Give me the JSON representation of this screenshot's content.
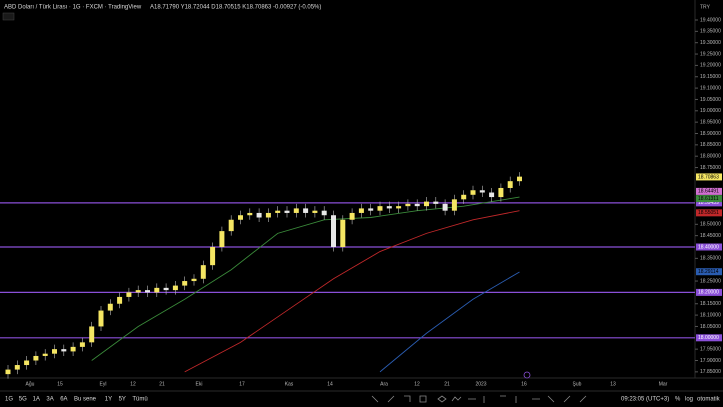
{
  "ui": {
    "header": "ABD Doları / Türk Lirası · 1G · FXCM · TradingView",
    "ohlc": "A18.71790 Y18.72044 D18.70515 K18.70863 -0.00927 (-0.05%)",
    "currency": "TRY",
    "ranges": [
      "1G",
      "5G",
      "1A",
      "3A",
      "6A",
      "Bu sene",
      "1Y",
      "5Y",
      "Tümü"
    ],
    "clock": "09:23:05 (UTC+3)",
    "percent": "%",
    "log": "log",
    "auto": "otomatik"
  },
  "chart_data": {
    "type": "candlestick",
    "up_color": "#f5e663",
    "down_color": "#e8e8e8",
    "time_labels": [
      "Ağu",
      "15",
      "Eyl",
      "12",
      "21",
      "Eki",
      "17",
      "Kas",
      "14",
      "Ara",
      "12",
      "21",
      "2023",
      "16",
      "Şub",
      "13",
      "Mar"
    ],
    "open": [
      17.84,
      17.86,
      17.88,
      17.9,
      17.92,
      17.93,
      17.95,
      17.94,
      17.96,
      17.98,
      18.05,
      18.12,
      18.15,
      18.18,
      18.2,
      18.21,
      18.2,
      18.22,
      18.21,
      18.23,
      18.25,
      18.26,
      18.32,
      18.4,
      18.47,
      18.52,
      18.54,
      18.55,
      18.53,
      18.55,
      18.56,
      18.55,
      18.57,
      18.55,
      18.56,
      18.54,
      18.4,
      18.52,
      18.55,
      18.57,
      18.56,
      18.58,
      18.57,
      18.58,
      18.59,
      18.58,
      18.6,
      18.59,
      18.56,
      18.61,
      18.63,
      18.65,
      18.64,
      18.62,
      18.66,
      18.69
    ],
    "high": [
      17.88,
      17.9,
      17.92,
      17.94,
      17.95,
      17.97,
      17.97,
      17.98,
      18.0,
      18.07,
      18.14,
      18.17,
      18.2,
      18.22,
      18.23,
      18.23,
      18.24,
      18.24,
      18.25,
      18.27,
      18.28,
      18.34,
      18.42,
      18.49,
      18.54,
      18.56,
      18.57,
      18.57,
      18.57,
      18.58,
      18.58,
      18.59,
      18.59,
      18.58,
      18.58,
      18.56,
      18.54,
      18.57,
      18.59,
      18.59,
      18.6,
      18.6,
      18.6,
      18.61,
      18.61,
      18.62,
      18.62,
      18.61,
      18.63,
      18.65,
      18.67,
      18.67,
      18.66,
      18.68,
      18.71,
      18.73
    ],
    "low": [
      17.82,
      17.84,
      17.86,
      17.88,
      17.9,
      17.91,
      17.92,
      17.92,
      17.94,
      17.96,
      18.03,
      18.1,
      18.13,
      18.16,
      18.18,
      18.18,
      18.18,
      18.19,
      18.19,
      18.21,
      18.23,
      18.24,
      18.3,
      18.38,
      18.45,
      18.5,
      18.52,
      18.51,
      18.51,
      18.53,
      18.53,
      18.53,
      18.53,
      18.53,
      18.52,
      18.38,
      18.38,
      18.5,
      18.53,
      18.54,
      18.54,
      18.55,
      18.55,
      18.56,
      18.56,
      18.56,
      18.57,
      18.54,
      18.54,
      18.59,
      18.61,
      18.62,
      18.6,
      18.6,
      18.64,
      18.67
    ],
    "close": [
      17.86,
      17.88,
      17.9,
      17.92,
      17.93,
      17.95,
      17.94,
      17.96,
      17.98,
      18.05,
      18.12,
      18.15,
      18.18,
      18.2,
      18.21,
      18.2,
      18.22,
      18.21,
      18.23,
      18.25,
      18.26,
      18.32,
      18.4,
      18.47,
      18.52,
      18.54,
      18.55,
      18.53,
      18.55,
      18.56,
      18.55,
      18.57,
      18.55,
      18.56,
      18.54,
      18.4,
      18.52,
      18.55,
      18.57,
      18.56,
      18.58,
      18.57,
      18.58,
      18.59,
      18.58,
      18.6,
      18.59,
      18.56,
      18.61,
      18.63,
      18.65,
      18.64,
      18.62,
      18.66,
      18.69,
      18.71
    ],
    "lines": [
      {
        "color": "#3a8a3a",
        "x": [
          9,
          14,
          19,
          24,
          29,
          34,
          39,
          44,
          49,
          55
        ],
        "values": [
          17.9,
          18.05,
          18.17,
          18.3,
          18.46,
          18.52,
          18.53,
          18.56,
          18.58,
          18.62
        ]
      },
      {
        "color": "#c0282a",
        "x": [
          19,
          25,
          30,
          35,
          40,
          45,
          50,
          55
        ],
        "values": [
          17.85,
          17.98,
          18.12,
          18.26,
          18.38,
          18.46,
          18.52,
          18.56
        ]
      },
      {
        "color": "#2a5cb0",
        "x": [
          40,
          45,
          50,
          55
        ],
        "values": [
          17.85,
          18.02,
          18.17,
          18.29
        ]
      }
    ],
    "levels": [
      {
        "value": 18.59439
      },
      {
        "value": 18.4,
        "label": "18.40000"
      },
      {
        "value": 18.2,
        "label": "18.20000"
      },
      {
        "value": 18.0,
        "label": "18.00000"
      }
    ],
    "level_color": "#8a4fd8",
    "price_tags": [
      {
        "value": 18.70863,
        "color": "#f5e663"
      },
      {
        "value": 18.64491,
        "color": "#d070d0"
      },
      {
        "value": 18.61311,
        "color": "#3a8a3a"
      },
      {
        "value": 18.55051,
        "color": "#c0282a"
      },
      {
        "value": 18.29114,
        "color": "#2a5cb0"
      }
    ],
    "ylim": [
      17.8,
      19.45
    ],
    "yticks": [
      {
        "value": 19.4,
        "label": "19.40000"
      },
      {
        "value": 19.35,
        "label": "19.35000"
      },
      {
        "value": 19.3,
        "label": "19.30000"
      },
      {
        "value": 19.25,
        "label": "19.25000"
      },
      {
        "value": 19.2,
        "label": "19.20000"
      },
      {
        "value": 19.15,
        "label": "19.15000"
      },
      {
        "value": 19.1,
        "label": "19.10000"
      },
      {
        "value": 19.05,
        "label": "19.05000"
      },
      {
        "value": 19.0,
        "label": "19.00000"
      },
      {
        "value": 18.95,
        "label": "18.95000"
      },
      {
        "value": 18.9,
        "label": "18.90000"
      },
      {
        "value": 18.85,
        "label": "18.85000"
      },
      {
        "value": 18.8,
        "label": "18.80000"
      },
      {
        "value": 18.75,
        "label": "18.75000"
      },
      {
        "value": 18.5,
        "label": "18.50000"
      },
      {
        "value": 18.45,
        "label": "18.45000"
      },
      {
        "value": 18.35,
        "label": "18.35000"
      },
      {
        "value": 18.25,
        "label": "18.25000"
      },
      {
        "value": 18.15,
        "label": "18.15000"
      },
      {
        "value": 18.1,
        "label": "18.10000"
      },
      {
        "value": 18.05,
        "label": "18.05000"
      },
      {
        "value": 17.95,
        "label": "17.95000"
      },
      {
        "value": 17.9,
        "label": "17.90000"
      },
      {
        "value": 17.85,
        "label": "17.85000"
      }
    ]
  }
}
